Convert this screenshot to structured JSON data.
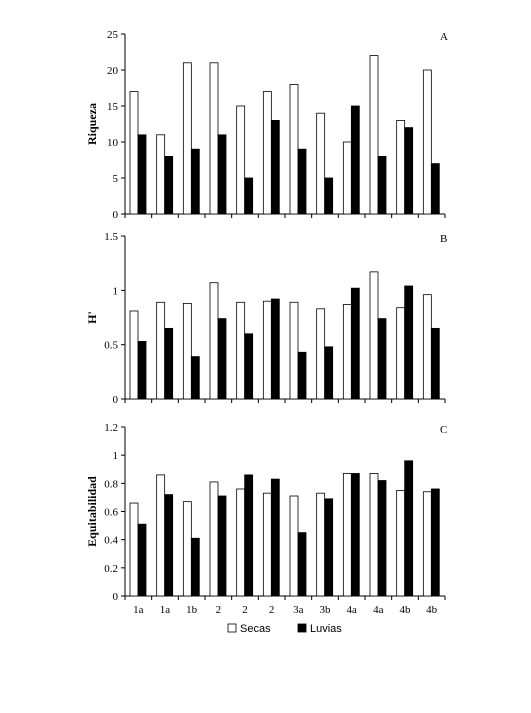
{
  "chart_data": {
    "type": "bar",
    "categories": [
      "1a",
      "1a",
      "1b",
      "2",
      "2",
      "2",
      "3a",
      "3b",
      "4a",
      "4a",
      "4b",
      "4b"
    ],
    "legend": {
      "position": "bottom",
      "entries": [
        {
          "name": "Secas",
          "color": "#ffffff"
        },
        {
          "name": "Luvias",
          "color": "#000000"
        }
      ]
    },
    "panels": [
      {
        "letter": "A",
        "ylabel": "Riqueza",
        "ylim": [
          0,
          25
        ],
        "yticks": [
          "0",
          "5",
          "10",
          "15",
          "20",
          "25"
        ],
        "series": [
          {
            "name": "Secas",
            "values": [
              17,
              11,
              21,
              21,
              15,
              17,
              18,
              14,
              10,
              22,
              13,
              20
            ]
          },
          {
            "name": "Luvias",
            "values": [
              11,
              8,
              9,
              11,
              5,
              13,
              9,
              5,
              15,
              8,
              12,
              7
            ]
          }
        ]
      },
      {
        "letter": "B",
        "ylabel": "H'",
        "ylim": [
          0,
          1.5
        ],
        "yticks": [
          "0",
          "0.5",
          "1",
          "1.5"
        ],
        "series": [
          {
            "name": "Secas",
            "values": [
              0.81,
              0.89,
              0.88,
              1.07,
              0.89,
              0.9,
              0.89,
              0.83,
              0.87,
              1.17,
              0.84,
              0.96
            ]
          },
          {
            "name": "Luvias",
            "values": [
              0.53,
              0.65,
              0.39,
              0.74,
              0.6,
              0.92,
              0.43,
              0.48,
              1.02,
              0.74,
              1.04,
              0.65
            ]
          }
        ]
      },
      {
        "letter": "C",
        "ylabel": "Equitabilidad",
        "ylim": [
          0,
          1.2
        ],
        "yticks": [
          "0",
          "0.2",
          "0.4",
          "0.6",
          "0.8",
          "1",
          "1.2"
        ],
        "series": [
          {
            "name": "Secas",
            "values": [
              0.66,
              0.86,
              0.67,
              0.81,
              0.76,
              0.73,
              0.71,
              0.73,
              0.87,
              0.87,
              0.75,
              0.74
            ]
          },
          {
            "name": "Luvias",
            "values": [
              0.51,
              0.72,
              0.41,
              0.71,
              0.86,
              0.83,
              0.45,
              0.69,
              0.87,
              0.82,
              0.96,
              0.76
            ]
          }
        ]
      }
    ]
  }
}
